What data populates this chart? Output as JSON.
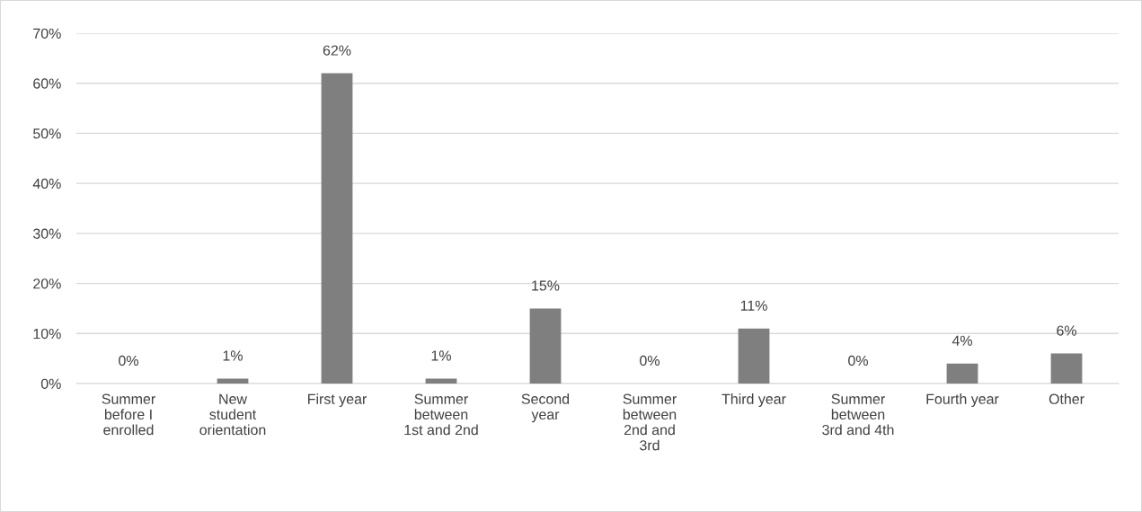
{
  "chart_data": {
    "type": "bar",
    "categories": [
      "Summer\nbefore I\nenrolled",
      "New\nstudent\norientation",
      "First year",
      "Summer\nbetween\n1st and 2nd",
      "Second\nyear",
      "Summer\nbetween\n2nd and\n3rd",
      "Third year",
      "Summer\nbetween\n3rd and 4th",
      "Fourth year",
      "Other"
    ],
    "values": [
      0,
      1,
      62,
      1,
      15,
      0,
      11,
      0,
      4,
      6
    ],
    "value_labels": [
      "0%",
      "1%",
      "62%",
      "1%",
      "15%",
      "0%",
      "11%",
      "0%",
      "4%",
      "6%"
    ],
    "color": "#7f7f7f",
    "ylim": [
      0,
      70
    ],
    "yticks": [
      {
        "value": 0,
        "label": "0%"
      },
      {
        "value": 10,
        "label": "10%"
      },
      {
        "value": 20,
        "label": "20%"
      },
      {
        "value": 30,
        "label": "30%"
      },
      {
        "value": 40,
        "label": "40%"
      },
      {
        "value": 50,
        "label": "50%"
      },
      {
        "value": 60,
        "label": "60%"
      },
      {
        "value": 70,
        "label": "70%"
      }
    ],
    "grid": "y",
    "legend": false
  }
}
